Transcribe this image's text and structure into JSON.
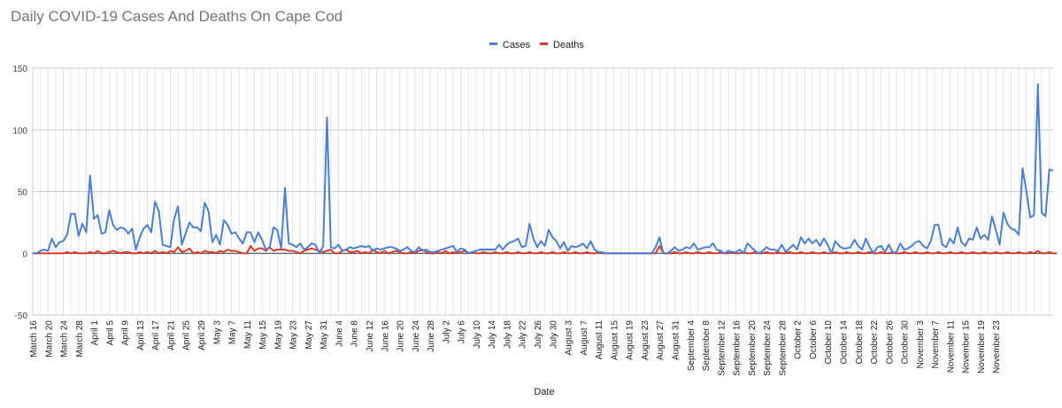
{
  "chart_data": {
    "type": "line",
    "title": "Daily COVID-19 Cases And Deaths On Cape Cod",
    "xlabel": "Date",
    "ylabel": "",
    "ylim": [
      -50,
      150
    ],
    "yticks": [
      -50,
      0,
      50,
      100,
      150
    ],
    "grid": true,
    "legend": "top",
    "x_tick_labels": [
      "March 16",
      "March 20",
      "March 24",
      "March 28",
      "April 1",
      "April 5",
      "April 9",
      "April 13",
      "April 17",
      "April 21",
      "April 25",
      "April 29",
      "May 3",
      "May 7",
      "May 11",
      "May 15",
      "May 19",
      "May 23",
      "May 27",
      "May 31",
      "June 4",
      "June 8",
      "June 12",
      "June 16",
      "June 20",
      "June 24",
      "June 28",
      "July 2",
      "July 6",
      "July 10",
      "July 14",
      "July 18",
      "July 22",
      "July 26",
      "July 30",
      "August 3",
      "August 7",
      "August 11",
      "August 15",
      "August 19",
      "August 23",
      "August 27",
      "August 31",
      "September 4",
      "September 8",
      "September 12",
      "September 16",
      "September 20",
      "September 24",
      "September 28",
      "October 2",
      "October 6",
      "October 10",
      "October 14",
      "October 18",
      "October 22",
      "October 26",
      "October 30",
      "November 3",
      "November 7",
      "November 11",
      "November 15",
      "November 19",
      "November 23"
    ],
    "series": [
      {
        "name": "Cases",
        "color": "#4a7fd3",
        "values": [
          0,
          0,
          2,
          3,
          2,
          12,
          5,
          9,
          10,
          15,
          32,
          32,
          14,
          24,
          17,
          63,
          28,
          31,
          16,
          17,
          35,
          23,
          19,
          21,
          20,
          16,
          20,
          3,
          13,
          20,
          23,
          17,
          42,
          34,
          7,
          6,
          5,
          28,
          38,
          7,
          16,
          25,
          21,
          21,
          18,
          41,
          34,
          9,
          15,
          7,
          27,
          23,
          16,
          17,
          12,
          8,
          17,
          17,
          9,
          17,
          11,
          3,
          5,
          21,
          19,
          4,
          53,
          8,
          7,
          5,
          8,
          3,
          5,
          8,
          7,
          0,
          6,
          110,
          5,
          4,
          7,
          2,
          3,
          5,
          4,
          5,
          6,
          5,
          6,
          2,
          4,
          3,
          4,
          5,
          5,
          4,
          2,
          3,
          5,
          2,
          1,
          5,
          2,
          3,
          1,
          1,
          2,
          3,
          4,
          5,
          6,
          1,
          4,
          3,
          0,
          1,
          2,
          3,
          3,
          3,
          3,
          3,
          7,
          3,
          7,
          9,
          10,
          12,
          5,
          6,
          24,
          12,
          5,
          10,
          6,
          19,
          13,
          10,
          4,
          9,
          2,
          6,
          5,
          6,
          8,
          4,
          10,
          3,
          1,
          1,
          0,
          0,
          0,
          0,
          0,
          0,
          0,
          0,
          0,
          0,
          0,
          0,
          0,
          5,
          13,
          0,
          0,
          2,
          5,
          2,
          3,
          5,
          4,
          8,
          3,
          4,
          5,
          5,
          8,
          3,
          2,
          0,
          2,
          1,
          1,
          3,
          0,
          8,
          5,
          2,
          0,
          2,
          5,
          3,
          3,
          2,
          7,
          1,
          4,
          7,
          3,
          13,
          8,
          12,
          8,
          11,
          6,
          12,
          7,
          0,
          10,
          6,
          4,
          4,
          5,
          11,
          6,
          3,
          12,
          5,
          0,
          5,
          6,
          1,
          7,
          1,
          1,
          8,
          3,
          4,
          6,
          9,
          10,
          6,
          4,
          10,
          23,
          23,
          7,
          5,
          12,
          8,
          21,
          9,
          6,
          12,
          11,
          21,
          12,
          15,
          11,
          30,
          19,
          7,
          33,
          24,
          20,
          19,
          15,
          69,
          50,
          29,
          31,
          137,
          33,
          30,
          68,
          67
        ]
      },
      {
        "name": "Deaths",
        "color": "#db3b2b",
        "values": [
          0,
          0,
          0,
          0,
          0,
          0,
          0,
          0,
          0,
          1,
          0,
          1,
          0,
          0,
          0,
          1,
          0,
          2,
          0,
          0,
          1,
          2,
          1,
          0,
          1,
          1,
          0,
          0,
          1,
          0,
          1,
          0,
          2,
          0,
          1,
          0,
          2,
          1,
          5,
          1,
          2,
          4,
          0,
          1,
          0,
          2,
          1,
          1,
          0,
          2,
          1,
          3,
          2,
          2,
          1,
          0,
          0,
          6,
          2,
          4,
          4,
          2,
          5,
          2,
          3,
          3,
          3,
          2,
          2,
          1,
          0,
          2,
          3,
          4,
          3,
          2,
          1,
          2,
          3,
          0,
          0,
          2,
          3,
          1,
          1,
          2,
          0,
          1,
          0,
          3,
          1,
          0,
          2,
          0,
          1,
          2,
          1,
          0,
          0,
          1,
          0,
          2,
          3,
          1,
          0,
          0,
          1,
          0,
          2,
          0,
          1,
          0,
          1,
          2,
          0,
          1,
          0,
          0,
          1,
          0,
          0,
          1,
          0,
          0,
          1,
          0,
          0,
          1,
          0,
          0,
          1,
          0,
          0,
          1,
          0,
          0,
          1,
          0,
          0,
          1,
          0,
          0,
          1,
          0,
          0,
          1,
          0,
          0,
          1,
          0,
          0,
          0,
          0,
          0,
          0,
          0,
          0,
          0,
          0,
          0,
          0,
          0,
          0,
          0,
          6,
          0,
          0,
          0,
          1,
          0,
          0,
          1,
          0,
          0,
          1,
          0,
          0,
          1,
          0,
          0,
          1,
          0,
          0,
          1,
          0,
          0,
          1,
          0,
          0,
          1,
          0,
          0,
          1,
          0,
          0,
          1,
          0,
          0,
          1,
          0,
          0,
          1,
          0,
          0,
          1,
          0,
          0,
          1,
          0,
          0,
          1,
          0,
          0,
          1,
          0,
          0,
          1,
          0,
          0,
          1,
          0,
          0,
          1,
          0,
          0,
          1,
          0,
          0,
          1,
          0,
          0,
          1,
          0,
          0,
          1,
          0,
          0,
          1,
          0,
          0,
          1,
          0,
          0,
          1,
          0,
          0,
          1,
          0,
          0,
          1,
          0,
          0,
          1,
          0,
          0,
          1,
          0,
          0,
          1,
          0,
          0,
          1,
          0,
          2,
          0,
          0,
          1,
          0,
          0
        ]
      }
    ]
  }
}
